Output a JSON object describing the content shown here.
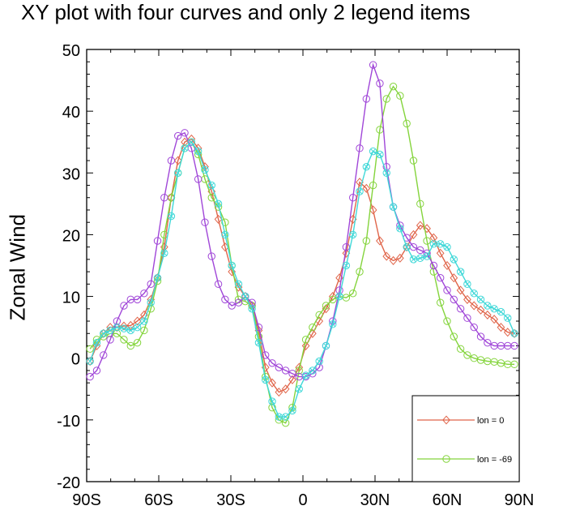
{
  "chart_data": {
    "type": "line",
    "title": "XY plot with four curves and only 2 legend items",
    "xlabel": "",
    "ylabel": "Zonal Wind",
    "xlim": [
      -90,
      90
    ],
    "ylim": [
      -20,
      50
    ],
    "x_ticks": [
      {
        "value": -90,
        "label": "90S"
      },
      {
        "value": -60,
        "label": "60S"
      },
      {
        "value": -30,
        "label": "30S"
      },
      {
        "value": 0,
        "label": "0"
      },
      {
        "value": 30,
        "label": "30N"
      },
      {
        "value": 60,
        "label": "60N"
      },
      {
        "value": 90,
        "label": "90N"
      }
    ],
    "y_ticks": [
      -20,
      -10,
      0,
      10,
      20,
      30,
      40,
      50
    ],
    "grid": false,
    "legend": {
      "placement": "bottom-right",
      "visible_series": [
        "lon = 0",
        "lon = -69"
      ]
    },
    "x": [
      -88.6,
      -85.8,
      -83.0,
      -80.2,
      -77.4,
      -74.5,
      -71.7,
      -68.9,
      -66.1,
      -63.3,
      -60.5,
      -57.7,
      -54.8,
      -52.0,
      -49.2,
      -46.4,
      -43.6,
      -40.8,
      -38.0,
      -35.2,
      -32.4,
      -29.6,
      -26.8,
      -24.0,
      -21.2,
      -18.4,
      -15.6,
      -12.8,
      -10.0,
      -7.2,
      -4.4,
      -1.6,
      1.2,
      4.0,
      6.8,
      9.6,
      12.4,
      15.2,
      18.0,
      20.8,
      23.6,
      26.4,
      29.2,
      32.0,
      34.8,
      37.6,
      40.4,
      43.2,
      46.0,
      48.8,
      51.6,
      54.4,
      57.2,
      60.0,
      62.8,
      65.6,
      68.4,
      71.2,
      74.0,
      76.8,
      79.6,
      82.4,
      85.2,
      88.0
    ],
    "series": [
      {
        "name": "lon = 0",
        "color": "#e0654a",
        "marker": "diamond",
        "values": [
          -0.5,
          2.0,
          4.0,
          5.0,
          5.0,
          5.2,
          5.3,
          6.0,
          7.0,
          9.5,
          13.0,
          18.0,
          26.0,
          32.0,
          35.0,
          35.5,
          34.0,
          31.0,
          27.0,
          22.5,
          18.0,
          14.0,
          11.5,
          10.0,
          8.5,
          4.5,
          -1.5,
          -4.0,
          -5.5,
          -5.0,
          -3.5,
          -1.5,
          2.0,
          4.0,
          6.0,
          8.0,
          10.0,
          13.0,
          17.0,
          22.5,
          28.5,
          27.5,
          24.0,
          19.0,
          16.5,
          15.8,
          16.2,
          18.0,
          20.0,
          21.5,
          21.0,
          19.5,
          17.0,
          15.0,
          13.0,
          11.0,
          9.5,
          8.5,
          7.8,
          7.0,
          6.3,
          5.0,
          4.2,
          4.0
        ]
      },
      {
        "name": "lon = -69",
        "color": "#84d43c",
        "marker": "circle",
        "values": [
          1.5,
          3.0,
          3.5,
          4.0,
          4.0,
          3.0,
          2.0,
          2.5,
          4.5,
          8.0,
          12.5,
          20.0,
          26.0,
          30.0,
          34.0,
          35.0,
          33.0,
          29.0,
          26.0,
          24.5,
          22.0,
          15.0,
          9.5,
          9.2,
          8.5,
          3.5,
          -3.0,
          -8.0,
          -10.0,
          -10.5,
          -8.0,
          -2.0,
          3.0,
          5.0,
          7.0,
          8.5,
          9.5,
          10.0,
          9.8,
          10.5,
          14.0,
          19.0,
          28.0,
          37.0,
          42.0,
          44.0,
          42.5,
          38.0,
          32.0,
          25.0,
          19.0,
          14.0,
          9.0,
          6.0,
          3.5,
          1.5,
          0.5,
          0.0,
          -0.3,
          -0.5,
          -0.6,
          -0.8,
          -1.0,
          -1.0
        ]
      },
      {
        "name": "",
        "color": "#a046d8",
        "marker": "circle",
        "values": [
          -3.0,
          -2.0,
          0.5,
          3.0,
          6.0,
          8.5,
          9.5,
          9.5,
          10.5,
          12.0,
          19.0,
          26.0,
          32.0,
          36.0,
          36.5,
          34.0,
          29.0,
          22.0,
          16.5,
          12.0,
          9.5,
          8.5,
          9.0,
          10.0,
          9.0,
          5.0,
          0.5,
          -0.8,
          -1.5,
          -2.0,
          -2.5,
          -3.0,
          -3.0,
          -2.5,
          -1.5,
          2.0,
          6.0,
          11.0,
          18.0,
          26.0,
          34.0,
          42.0,
          47.5,
          44.5,
          31.0,
          24.5,
          21.5,
          19.5,
          18.0,
          17.5,
          17.0,
          15.0,
          13.0,
          11.0,
          9.5,
          8.0,
          6.5,
          5.0,
          3.5,
          2.5,
          2.0,
          2.0,
          2.0,
          2.0
        ]
      },
      {
        "name": "",
        "color": "#40d8d8",
        "marker": "circle-x",
        "values": [
          -0.5,
          2.5,
          4.0,
          4.5,
          5.0,
          4.8,
          4.5,
          5.0,
          6.0,
          9.0,
          13.0,
          17.0,
          23.0,
          30.0,
          34.0,
          35.0,
          33.5,
          30.5,
          28.0,
          25.0,
          20.0,
          15.0,
          12.0,
          10.0,
          8.0,
          2.5,
          -3.5,
          -7.0,
          -9.5,
          -9.5,
          -8.5,
          -5.0,
          -2.8,
          -2.0,
          -0.5,
          2.0,
          5.5,
          10.0,
          15.0,
          20.0,
          27.0,
          31.0,
          33.5,
          33.0,
          30.0,
          24.5,
          21.0,
          18.0,
          16.0,
          16.2,
          16.5,
          18.5,
          18.5,
          18.0,
          16.0,
          14.0,
          12.0,
          10.5,
          9.5,
          8.5,
          8.0,
          7.5,
          6.5,
          4.0
        ]
      }
    ]
  }
}
